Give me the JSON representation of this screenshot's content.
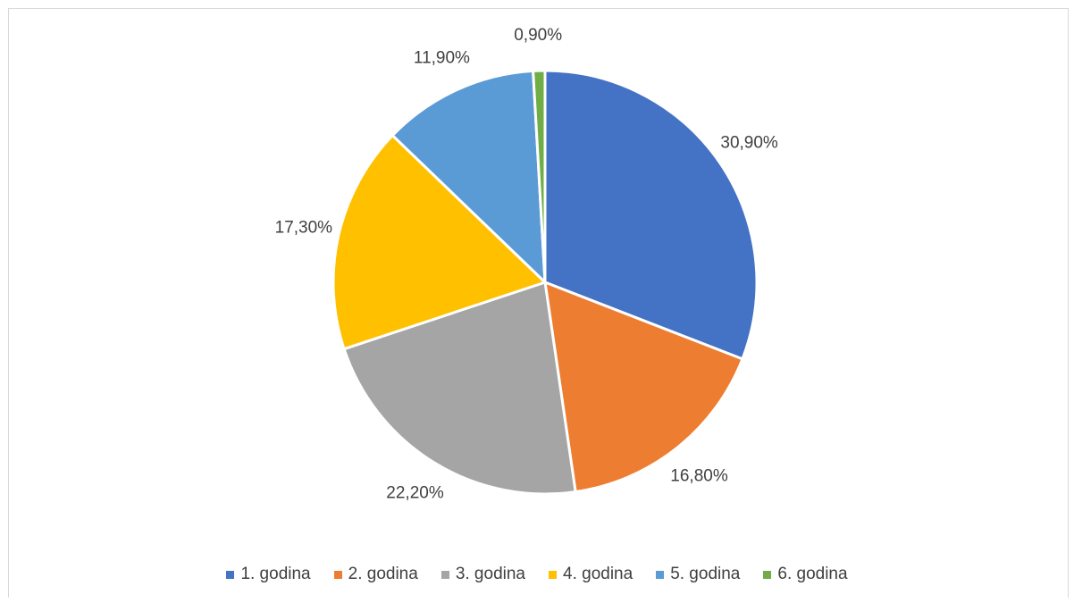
{
  "chart_data": {
    "type": "pie",
    "title": "",
    "categories": [
      "1. godina",
      "2. godina",
      "3. godina",
      "4. godina",
      "5. godina",
      "6. godina"
    ],
    "values": [
      30.9,
      16.8,
      22.2,
      17.3,
      11.9,
      0.9
    ],
    "labels": [
      "30,90%",
      "16,80%",
      "22,20%",
      "17,30%",
      "11,90%",
      "0,90%"
    ],
    "colors": [
      "#4472C4",
      "#ED7D31",
      "#A5A5A5",
      "#FFC000",
      "#5B9BD5",
      "#70AD47"
    ],
    "legend_position": "bottom"
  }
}
